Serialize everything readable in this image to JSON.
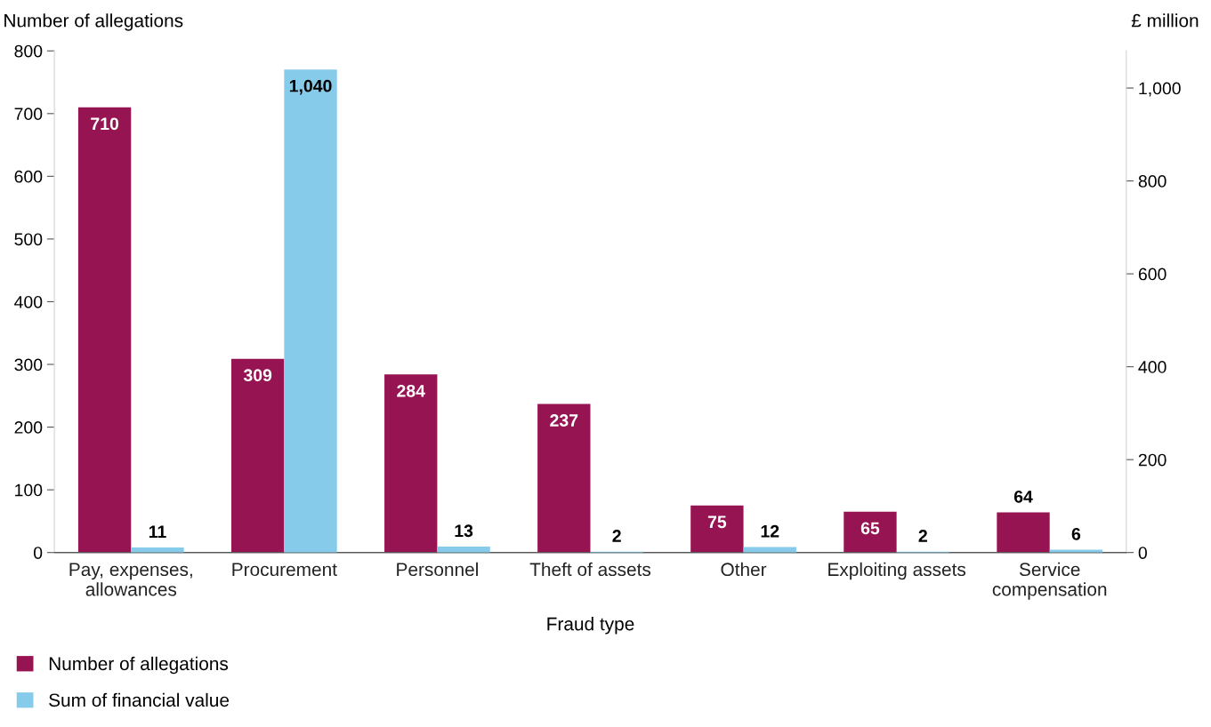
{
  "chart_data": {
    "type": "bar",
    "xlabel": "Fraud type",
    "ylabel": "Number of allegations",
    "y2label": "£ million",
    "categories": [
      "Pay, expenses,\nallowances",
      "Procurement",
      "Personnel",
      "Theft of assets",
      "Other",
      "Exploiting assets",
      "Service\ncompensation"
    ],
    "series": [
      {
        "name": "Number of allegations",
        "color": "#961452",
        "values": [
          710,
          309,
          284,
          237,
          75,
          65,
          64
        ],
        "value_labels": [
          "710",
          "309",
          "284",
          "237",
          "75",
          "65",
          "64"
        ]
      },
      {
        "name": "Sum of financial value",
        "color": "#87cbea",
        "axis": "y2",
        "values": [
          11,
          1040,
          13,
          2,
          12,
          2,
          6
        ],
        "value_labels": [
          "11",
          "1,040",
          "13",
          "2",
          "12",
          "2",
          "6"
        ]
      }
    ],
    "ylim": [
      0,
      800
    ],
    "yticks": [
      0,
      100,
      200,
      300,
      400,
      500,
      600,
      700,
      800
    ],
    "y2lim": [
      0,
      1080
    ],
    "y2ticks": [
      0,
      200,
      400,
      600,
      800,
      {
        "value": 1000,
        "label": "1,000"
      }
    ],
    "grid": false,
    "legend": "bottom left"
  }
}
